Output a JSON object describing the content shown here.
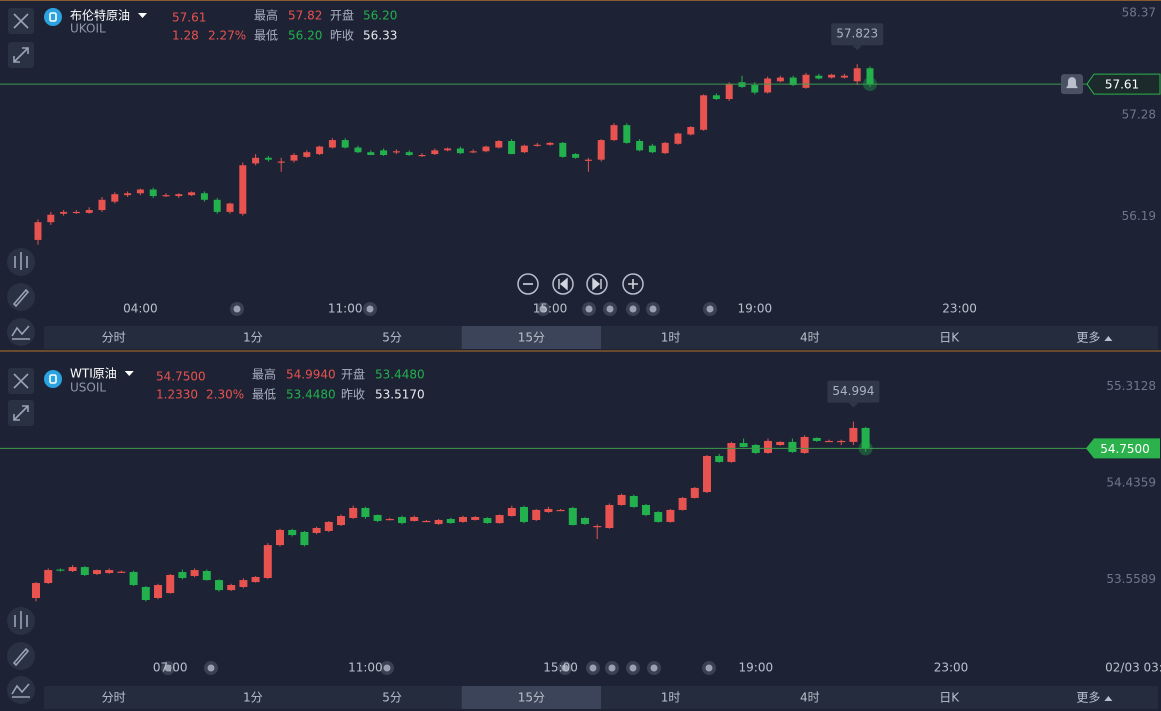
{
  "timeframes": [
    "分时",
    "1分",
    "5分",
    "15分",
    "1时",
    "4时",
    "日K",
    "更多"
  ],
  "selected_timeframe": "15分",
  "chart_data": [
    {
      "type": "candlestick",
      "symbol": "布伦特原油",
      "code": "UKOIL",
      "price": "57.61",
      "change": "1.28",
      "change_pct": "2.27%",
      "stats": [
        {
          "label": "最高",
          "value": "57.82"
        },
        {
          "label": "开盘",
          "value": "56.20"
        },
        {
          "label": "最低",
          "value": "56.20"
        },
        {
          "label": "昨收",
          "value": "56.33"
        }
      ],
      "high_label": "57.823",
      "up_color": "#e8524f",
      "down_color": "#22b14c",
      "ylim": [
        55.06,
        58.49
      ],
      "yticks": [
        58.37,
        57.28,
        56.19
      ],
      "categories": [
        null,
        null,
        null,
        null,
        null,
        null,
        null,
        null,
        "04:00",
        null,
        null,
        null,
        null,
        null,
        null,
        null,
        null,
        null,
        null,
        null,
        null,
        null,
        null,
        null,
        "11:00",
        null,
        null,
        null,
        null,
        null,
        null,
        null,
        null,
        null,
        null,
        null,
        null,
        null,
        null,
        null,
        "15:00",
        null,
        null,
        null,
        null,
        null,
        null,
        null,
        null,
        null,
        null,
        null,
        null,
        null,
        null,
        null,
        "19:00",
        null,
        null,
        null,
        null,
        null,
        null,
        null,
        null,
        null,
        null,
        null,
        null,
        null,
        null,
        null,
        "23:00",
        null,
        null,
        null,
        null,
        null,
        null,
        null,
        null,
        null
      ],
      "values": [
        [
          55.94,
          56.16,
          55.89,
          56.13
        ],
        [
          56.13,
          56.24,
          56.1,
          56.21
        ],
        [
          56.22,
          56.26,
          56.2,
          56.24
        ],
        [
          56.24,
          56.26,
          56.22,
          56.24
        ],
        [
          56.23,
          56.29,
          56.22,
          56.26
        ],
        [
          56.26,
          56.4,
          56.24,
          56.37
        ],
        [
          56.35,
          56.45,
          56.33,
          56.43
        ],
        [
          56.42,
          56.46,
          56.4,
          56.44
        ],
        [
          56.44,
          56.49,
          56.42,
          56.48
        ],
        [
          56.48,
          56.5,
          56.39,
          56.41
        ],
        [
          56.42,
          56.44,
          56.4,
          56.42
        ],
        [
          56.41,
          56.44,
          56.39,
          56.43
        ],
        [
          56.42,
          56.46,
          56.41,
          56.45
        ],
        [
          56.44,
          56.46,
          56.35,
          56.37
        ],
        [
          56.37,
          56.39,
          56.22,
          56.24
        ],
        [
          56.24,
          56.34,
          56.22,
          56.33
        ],
        [
          56.22,
          56.77,
          56.2,
          56.74
        ],
        [
          56.76,
          56.86,
          56.74,
          56.82
        ],
        [
          56.82,
          56.84,
          56.78,
          56.8
        ],
        [
          56.78,
          56.82,
          56.67,
          56.78
        ],
        [
          56.79,
          56.87,
          56.77,
          56.85
        ],
        [
          56.83,
          56.9,
          56.82,
          56.88
        ],
        [
          56.86,
          56.95,
          56.85,
          56.94
        ],
        [
          56.93,
          57.03,
          56.92,
          57.01
        ],
        [
          57.01,
          57.03,
          56.92,
          56.93
        ],
        [
          56.93,
          56.95,
          56.87,
          56.88
        ],
        [
          56.88,
          56.9,
          56.85,
          56.85
        ],
        [
          56.9,
          56.92,
          56.84,
          56.85
        ],
        [
          56.89,
          56.91,
          56.86,
          56.89
        ],
        [
          56.88,
          56.9,
          56.84,
          56.85
        ],
        [
          56.85,
          56.87,
          56.83,
          56.85
        ],
        [
          56.86,
          56.92,
          56.85,
          56.9
        ],
        [
          56.9,
          56.93,
          56.89,
          56.92
        ],
        [
          56.92,
          56.94,
          56.86,
          56.87
        ],
        [
          56.89,
          56.91,
          56.87,
          56.89
        ],
        [
          56.89,
          56.95,
          56.88,
          56.94
        ],
        [
          56.93,
          57.01,
          56.92,
          57.0
        ],
        [
          57.0,
          57.02,
          56.86,
          56.86
        ],
        [
          56.88,
          56.96,
          56.87,
          56.95
        ],
        [
          56.96,
          56.98,
          56.94,
          56.96
        ],
        [
          56.96,
          56.99,
          56.95,
          56.98
        ],
        [
          56.98,
          56.99,
          56.82,
          56.83
        ],
        [
          56.86,
          56.87,
          56.81,
          56.82
        ],
        [
          56.8,
          56.82,
          56.67,
          56.8
        ],
        [
          56.8,
          57.02,
          56.78,
          57.01
        ],
        [
          57.01,
          57.19,
          57.0,
          57.17
        ],
        [
          57.17,
          57.19,
          56.97,
          56.98
        ],
        [
          57.0,
          57.02,
          56.89,
          56.9
        ],
        [
          56.95,
          56.97,
          56.87,
          56.88
        ],
        [
          56.87,
          56.99,
          56.86,
          56.98
        ],
        [
          56.97,
          57.09,
          56.96,
          57.08
        ],
        [
          57.07,
          57.16,
          57.06,
          57.15
        ],
        [
          57.12,
          57.5,
          57.11,
          57.49
        ],
        [
          57.49,
          57.51,
          57.44,
          57.45
        ],
        [
          57.45,
          57.63,
          57.43,
          57.61
        ],
        [
          57.63,
          57.7,
          57.57,
          57.58
        ],
        [
          57.6,
          57.63,
          57.5,
          57.52
        ],
        [
          57.52,
          57.69,
          57.51,
          57.67
        ],
        [
          57.64,
          57.7,
          57.63,
          57.68
        ],
        [
          57.68,
          57.7,
          57.59,
          57.6
        ],
        [
          57.57,
          57.73,
          57.56,
          57.71
        ],
        [
          57.7,
          57.72,
          57.66,
          57.67
        ],
        [
          57.68,
          57.72,
          57.67,
          57.71
        ],
        [
          57.68,
          57.72,
          57.67,
          57.7
        ],
        [
          57.64,
          57.823,
          57.6,
          57.78
        ],
        [
          57.78,
          57.8,
          57.58,
          57.61
        ],
        null,
        null,
        null,
        null,
        null,
        null,
        null,
        null,
        null,
        null,
        null,
        null,
        null,
        null,
        null,
        null
      ]
    },
    {
      "type": "candlestick",
      "symbol": "WTI原油",
      "code": "USOIL",
      "price": "54.7500",
      "change": "1.2330",
      "change_pct": "2.30%",
      "stats": [
        {
          "label": "最高",
          "value": "54.9940"
        },
        {
          "label": "开盘",
          "value": "53.4480"
        },
        {
          "label": "最低",
          "value": "53.4480"
        },
        {
          "label": "昨收",
          "value": "53.5170"
        }
      ],
      "high_label": "54.994",
      "up_color": "#e8524f",
      "down_color": "#22b14c",
      "ylim": [
        52.646,
        55.617
      ],
      "yticks": [
        55.3128,
        54.4359,
        53.5589
      ],
      "categories": [
        null,
        null,
        null,
        null,
        null,
        null,
        null,
        null,
        null,
        null,
        null,
        "07:00",
        null,
        null,
        null,
        null,
        null,
        null,
        null,
        null,
        null,
        null,
        null,
        null,
        null,
        null,
        null,
        "11:00",
        null,
        null,
        null,
        null,
        null,
        null,
        null,
        null,
        null,
        null,
        null,
        null,
        null,
        null,
        null,
        "15:00",
        null,
        null,
        null,
        null,
        null,
        null,
        null,
        null,
        null,
        null,
        null,
        null,
        null,
        null,
        null,
        "19:00",
        null,
        null,
        null,
        null,
        null,
        null,
        null,
        null,
        null,
        null,
        null,
        null,
        null,
        null,
        null,
        "23:00",
        null,
        null,
        null,
        null,
        null,
        null,
        null,
        null,
        null,
        null,
        null,
        null,
        null,
        null,
        "02/03 03:"
      ],
      "values": [
        [
          53.391,
          53.536,
          53.36,
          53.527
        ],
        [
          53.527,
          53.66,
          53.518,
          53.645
        ],
        [
          53.65,
          53.66,
          53.63,
          53.64
        ],
        [
          53.636,
          53.69,
          53.627,
          53.672
        ],
        [
          53.672,
          53.68,
          53.59,
          53.6
        ],
        [
          53.609,
          53.65,
          53.6,
          53.645
        ],
        [
          53.618,
          53.66,
          53.61,
          53.645
        ],
        [
          53.63,
          53.64,
          53.62,
          53.63
        ],
        [
          53.627,
          53.64,
          53.5,
          53.509
        ],
        [
          53.491,
          53.5,
          53.36,
          53.373
        ],
        [
          53.391,
          53.52,
          53.38,
          53.509
        ],
        [
          53.436,
          53.61,
          53.43,
          53.6
        ],
        [
          53.627,
          53.65,
          53.56,
          53.573
        ],
        [
          53.591,
          53.66,
          53.58,
          53.645
        ],
        [
          53.636,
          53.65,
          53.55,
          53.554
        ],
        [
          53.554,
          53.56,
          53.45,
          53.463
        ],
        [
          53.463,
          53.52,
          53.455,
          53.509
        ],
        [
          53.491,
          53.57,
          53.48,
          53.554
        ],
        [
          53.536,
          53.59,
          53.53,
          53.582
        ],
        [
          53.573,
          53.89,
          53.565,
          53.872
        ],
        [
          53.872,
          54.02,
          53.86,
          54.009
        ],
        [
          54.009,
          54.02,
          53.95,
          53.963
        ],
        [
          53.991,
          54.0,
          53.86,
          53.872
        ],
        [
          53.982,
          54.04,
          53.97,
          54.027
        ],
        [
          54.0,
          54.09,
          53.99,
          54.082
        ],
        [
          54.054,
          54.15,
          54.045,
          54.136
        ],
        [
          54.118,
          54.23,
          54.11,
          54.209
        ],
        [
          54.209,
          54.22,
          54.11,
          54.127
        ],
        [
          54.145,
          54.15,
          54.08,
          54.091
        ],
        [
          54.109,
          54.12,
          54.095,
          54.109
        ],
        [
          54.127,
          54.14,
          54.06,
          54.072
        ],
        [
          54.091,
          54.14,
          54.085,
          54.127
        ],
        [
          54.091,
          54.1,
          54.085,
          54.091
        ],
        [
          54.063,
          54.11,
          54.055,
          54.1
        ],
        [
          54.109,
          54.12,
          54.065,
          54.072
        ],
        [
          54.082,
          54.14,
          54.075,
          54.127
        ],
        [
          54.1,
          54.135,
          54.095,
          54.127
        ],
        [
          54.118,
          54.125,
          54.065,
          54.072
        ],
        [
          54.072,
          54.15,
          54.065,
          54.145
        ],
        [
          54.136,
          54.23,
          54.13,
          54.209
        ],
        [
          54.218,
          54.23,
          54.07,
          54.082
        ],
        [
          54.1,
          54.2,
          54.09,
          54.191
        ],
        [
          54.172,
          54.22,
          54.165,
          54.2
        ],
        [
          54.191,
          54.2,
          54.185,
          54.191
        ],
        [
          54.209,
          54.22,
          54.05,
          54.054
        ],
        [
          54.118,
          54.125,
          54.055,
          54.063
        ],
        [
          54.045,
          54.06,
          53.927,
          54.045
        ],
        [
          54.027,
          54.25,
          54.02,
          54.236
        ],
        [
          54.236,
          54.34,
          54.23,
          54.327
        ],
        [
          54.318,
          54.33,
          54.21,
          54.218
        ],
        [
          54.236,
          54.245,
          54.135,
          54.145
        ],
        [
          54.172,
          54.18,
          54.075,
          54.082
        ],
        [
          54.082,
          54.2,
          54.075,
          54.191
        ],
        [
          54.191,
          54.31,
          54.185,
          54.3
        ],
        [
          54.3,
          54.4,
          54.295,
          54.391
        ],
        [
          54.354,
          54.69,
          54.345,
          54.681
        ],
        [
          54.681,
          54.7,
          54.62,
          54.627
        ],
        [
          54.627,
          54.81,
          54.62,
          54.799
        ],
        [
          54.799,
          54.84,
          54.76,
          54.763
        ],
        [
          54.781,
          54.79,
          54.7,
          54.709
        ],
        [
          54.709,
          54.84,
          54.7,
          54.818
        ],
        [
          54.781,
          54.815,
          54.775,
          54.809
        ],
        [
          54.809,
          54.84,
          54.71,
          54.718
        ],
        [
          54.709,
          54.87,
          54.7,
          54.854
        ],
        [
          54.845,
          54.85,
          54.81,
          54.818
        ],
        [
          54.818,
          54.83,
          54.81,
          54.818
        ],
        [
          54.818,
          54.83,
          54.78,
          54.818
        ],
        [
          54.809,
          54.994,
          54.78,
          54.936
        ],
        [
          54.936,
          54.945,
          54.72,
          54.75
        ],
        null,
        null,
        null,
        null,
        null,
        null,
        null,
        null,
        null,
        null,
        null,
        null,
        null,
        null,
        null,
        null,
        null,
        null,
        null,
        null,
        null,
        null
      ]
    }
  ]
}
